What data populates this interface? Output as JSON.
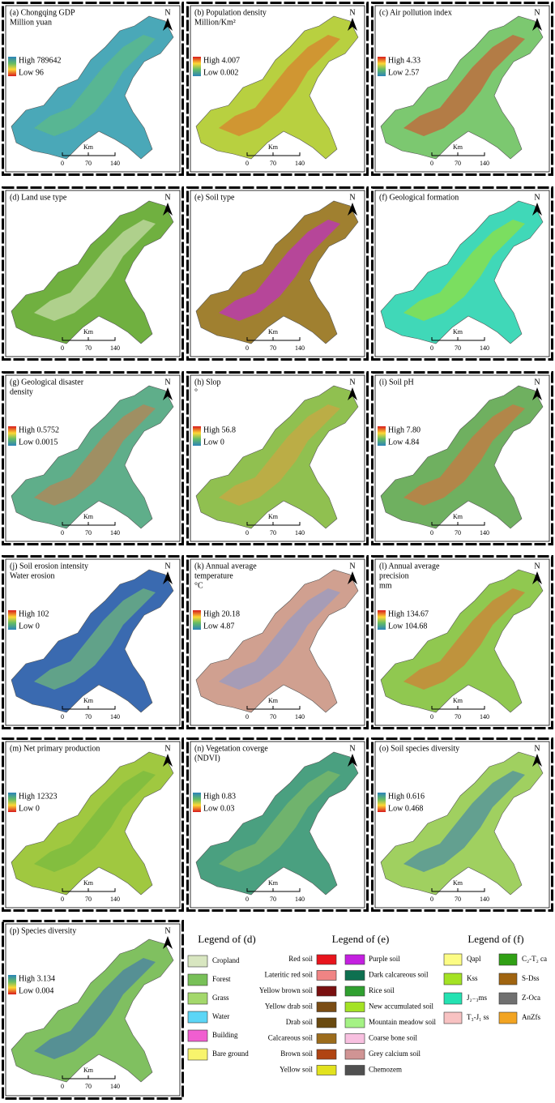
{
  "panels": [
    {
      "title": [
        "(a) Chongqing GDP",
        "Million yuan"
      ],
      "high": "High 789642",
      "low": "Low 96"
    },
    {
      "title": [
        "(b) Population density",
        "Million/Km²"
      ],
      "high": "High 4.007",
      "low": "Low 0.002"
    },
    {
      "title": [
        "(c) Air pollution index"
      ],
      "high": "High 4.33",
      "low": "Low 2.57"
    },
    {
      "title": [
        "(d) Land use type"
      ]
    },
    {
      "title": [
        "(e) Soil type"
      ]
    },
    {
      "title": [
        "(f) Geological formation"
      ]
    },
    {
      "title": [
        "(g) Geological disaster",
        "density"
      ],
      "high": "High 0.5752",
      "low": "Low 0.0015"
    },
    {
      "title": [
        "(h) Slop",
        "°"
      ],
      "high": "High 56.8",
      "low": "Low 0"
    },
    {
      "title": [
        "(i) Soil pH"
      ],
      "high": "High 7.80",
      "low": "Low 4.84"
    },
    {
      "title": [
        "(j) Soil erosion intensity",
        "Water erosion"
      ],
      "high": "High 102",
      "low": "Low 0"
    },
    {
      "title": [
        "(k) Annual average",
        "temperature",
        "°C"
      ],
      "high": "High 20.18",
      "low": "Low 4.87"
    },
    {
      "title": [
        "(l) Annual average",
        "precision",
        "mm"
      ],
      "high": "High 134.67",
      "low": "Low 104.68"
    },
    {
      "title": [
        "(m) Net primary production"
      ],
      "high": "High 12323",
      "low": "Low 0"
    },
    {
      "title": [
        "(n) Vegetation coverge",
        "(NDVI)"
      ],
      "high": "High 0.83",
      "low": "Low 0.03"
    },
    {
      "title": [
        "(o) Soil species diversity"
      ],
      "high": "High 0.616",
      "low": "Low 0.468"
    },
    {
      "title": [
        "(p) Species diversity"
      ],
      "high": "High 3.134",
      "low": "Low 0.004"
    }
  ],
  "north": "N",
  "scale": {
    "unit": "Km",
    "ticks": [
      "0",
      "70",
      "140"
    ]
  },
  "legends": [
    {
      "title": "Legend of (d)",
      "items": [
        {
          "name": "Cropland",
          "color": "#d8e6c0"
        },
        {
          "name": "Forest",
          "color": "#78c058"
        },
        {
          "name": "Grass",
          "color": "#a4d86c"
        },
        {
          "name": "Water",
          "color": "#5cd6f6"
        },
        {
          "name": "Building",
          "color": "#f05ed0"
        },
        {
          "name": "Bare ground",
          "color": "#f8f46c"
        }
      ]
    },
    {
      "title": "Legend of (e)",
      "items": [
        {
          "name": "Red soil",
          "color": "#e8141c"
        },
        {
          "name": "Lateritic red soil",
          "color": "#f08484"
        },
        {
          "name": "Yellow brown soil",
          "color": "#7a1010"
        },
        {
          "name": "Yellow drab soil",
          "color": "#7a4c14"
        },
        {
          "name": "Drab soil",
          "color": "#6a4a10"
        },
        {
          "name": "Calcareous soil",
          "color": "#9c6c1c"
        },
        {
          "name": "Brown soil",
          "color": "#b04412"
        },
        {
          "name": "Yellow soil",
          "color": "#e2e21e"
        },
        {
          "name": "Purple soil",
          "color": "#c420e0"
        },
        {
          "name": "Dark calcareous soil",
          "color": "#0e7050"
        },
        {
          "name": "Rice soil",
          "color": "#30a030"
        },
        {
          "name": "New accumulated soil",
          "color": "#a4e224"
        },
        {
          "name": "Mountain meadow soil",
          "color": "#a4f284"
        },
        {
          "name": "Coarse bone soil",
          "color": "#f8c0e0"
        },
        {
          "name": "Grey calcium soil",
          "color": "#d09494"
        },
        {
          "name": "Chemozem",
          "color": "#505050"
        }
      ]
    },
    {
      "title": "Legend of (f)",
      "items": [
        {
          "name": "Qapl",
          "color": "#fcfc84"
        },
        {
          "name": "Kss",
          "color": "#a4e224"
        },
        {
          "name": "J₂₋₃ms",
          "color": "#24e2b2"
        },
        {
          "name": "T₃-J₁ ss",
          "color": "#f8c2c2"
        },
        {
          "name": "C₂-T₂ ca",
          "color": "#30a014"
        },
        {
          "name": "S-Dss",
          "color": "#a06410"
        },
        {
          "name": "Z-Oca",
          "color": "#707070"
        },
        {
          "name": "AnZfs",
          "color": "#f2a422"
        }
      ]
    }
  ]
}
